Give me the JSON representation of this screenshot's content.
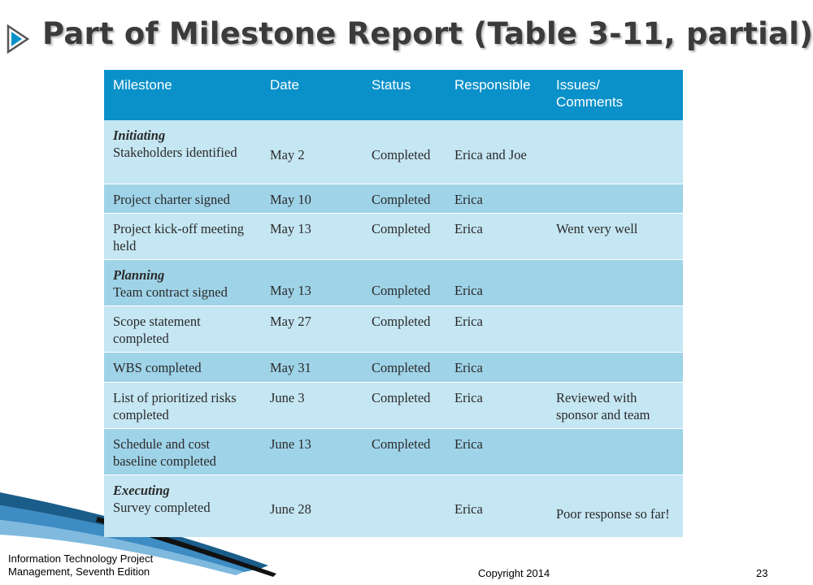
{
  "slide": {
    "title": "Part of Milestone Report (Table 3-11, partial)",
    "bullet_icon": "arrow-bullet-icon"
  },
  "colors": {
    "header": "#0b91c9",
    "row_light": "#c5e6f3",
    "row_mid": "#9fd3e8",
    "title": "#3b3b3b"
  },
  "table": {
    "headers": [
      "Milestone",
      "Date",
      "Status",
      "Responsible",
      "Issues/ Comments"
    ],
    "rows": [
      {
        "phase": "Initiating",
        "milestone": "Stakeholders identified",
        "date": "May 2",
        "status": "Completed",
        "responsible": "Erica and Joe",
        "comments": ""
      },
      {
        "phase": "",
        "milestone": "Project charter signed",
        "date": "May 10",
        "status": "Completed",
        "responsible": "Erica",
        "comments": ""
      },
      {
        "phase": "",
        "milestone": "Project kick-off meeting held",
        "date": "May 13",
        "status": "Completed",
        "responsible": "Erica",
        "comments": "Went very well"
      },
      {
        "phase": "Planning",
        "milestone": "Team contract signed",
        "date": "May 13",
        "status": "Completed",
        "responsible": "Erica",
        "comments": ""
      },
      {
        "phase": "",
        "milestone": "Scope statement completed",
        "date": "May 27",
        "status": "Completed",
        "responsible": "Erica",
        "comments": ""
      },
      {
        "phase": "",
        "milestone": "WBS completed",
        "date": "May 31",
        "status": "Completed",
        "responsible": "Erica",
        "comments": ""
      },
      {
        "phase": "",
        "milestone": "List of prioritized risks completed",
        "date": "June 3",
        "status": "Completed",
        "responsible": "Erica",
        "comments": "Reviewed with sponsor and team"
      },
      {
        "phase": "",
        "milestone": "Schedule and cost baseline completed",
        "date": "June 13",
        "status": "Completed",
        "responsible": "Erica",
        "comments": ""
      },
      {
        "phase": "Executing",
        "milestone": "Survey completed",
        "date": "June 28",
        "status": "",
        "responsible": "Erica",
        "comments": "Poor response so far!"
      }
    ]
  },
  "footer": {
    "book_line1": "Information Technology Project",
    "book_line2": "Management, Seventh Edition",
    "copyright": "Copyright 2014",
    "page_number": "23"
  }
}
